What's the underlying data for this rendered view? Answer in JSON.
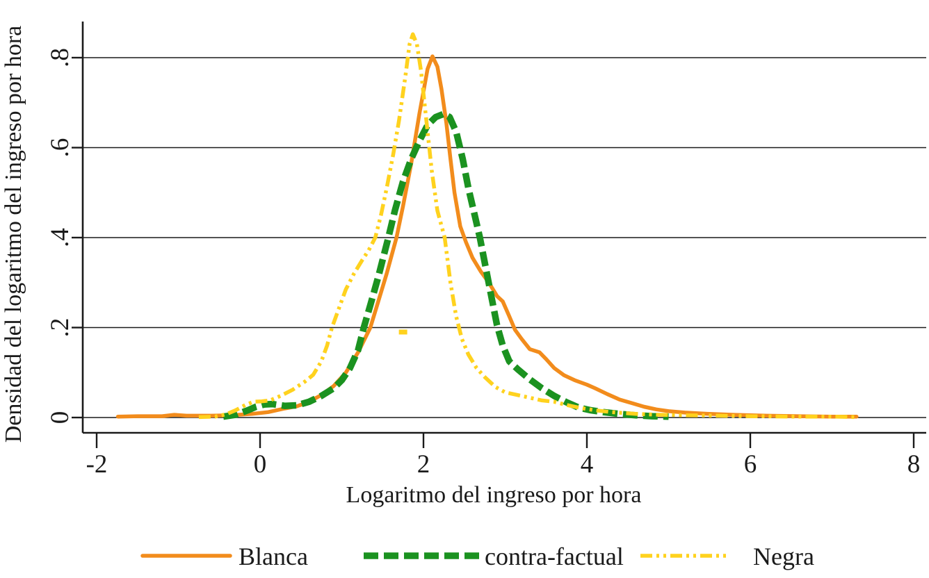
{
  "chart_data": {
    "type": "line",
    "subtype": "kernel-density",
    "title": "",
    "xlabel": "Logaritmo del ingreso por hora",
    "ylabel": "Densidad del logaritmo del ingreso por hora",
    "xlim": [
      -2.17,
      8.15
    ],
    "ylim": [
      0,
      0.88
    ],
    "grid": "horizontal",
    "legend_position": "bottom",
    "x_ticks": {
      "values": [
        -2,
        0,
        2,
        4,
        6,
        8
      ],
      "labels": [
        "-2",
        "0",
        "2",
        "4",
        "6",
        "8"
      ]
    },
    "y_ticks": {
      "values": [
        0,
        0.2,
        0.4,
        0.6,
        0.8
      ],
      "labels": [
        "0",
        ".2",
        ".4",
        ".6",
        ".8"
      ]
    },
    "series": [
      {
        "name": "Blanca",
        "color": "#F28C1C",
        "style": "solid",
        "peak": {
          "x": 2.11,
          "y": 0.8
        },
        "points": [
          [
            -1.74,
            0.002
          ],
          [
            -1.5,
            0.003
          ],
          [
            -1.2,
            0.003
          ],
          [
            -1.05,
            0.006
          ],
          [
            -0.9,
            0.004
          ],
          [
            -0.6,
            0.004
          ],
          [
            -0.35,
            0.005
          ],
          [
            -0.1,
            0.008
          ],
          [
            0.1,
            0.012
          ],
          [
            0.3,
            0.02
          ],
          [
            0.45,
            0.025
          ],
          [
            0.6,
            0.035
          ],
          [
            0.75,
            0.05
          ],
          [
            0.9,
            0.07
          ],
          [
            1.05,
            0.1
          ],
          [
            1.2,
            0.145
          ],
          [
            1.35,
            0.2
          ],
          [
            1.45,
            0.26
          ],
          [
            1.55,
            0.32
          ],
          [
            1.67,
            0.4
          ],
          [
            1.75,
            0.47
          ],
          [
            1.85,
            0.565
          ],
          [
            1.95,
            0.675
          ],
          [
            2.0,
            0.725
          ],
          [
            2.05,
            0.775
          ],
          [
            2.11,
            0.803
          ],
          [
            2.17,
            0.78
          ],
          [
            2.22,
            0.73
          ],
          [
            2.28,
            0.655
          ],
          [
            2.33,
            0.575
          ],
          [
            2.38,
            0.5
          ],
          [
            2.45,
            0.425
          ],
          [
            2.52,
            0.39
          ],
          [
            2.6,
            0.355
          ],
          [
            2.7,
            0.325
          ],
          [
            2.8,
            0.3
          ],
          [
            2.9,
            0.27
          ],
          [
            2.97,
            0.258
          ],
          [
            3.05,
            0.225
          ],
          [
            3.12,
            0.195
          ],
          [
            3.2,
            0.175
          ],
          [
            3.3,
            0.152
          ],
          [
            3.42,
            0.145
          ],
          [
            3.5,
            0.13
          ],
          [
            3.6,
            0.11
          ],
          [
            3.72,
            0.094
          ],
          [
            3.85,
            0.083
          ],
          [
            4.0,
            0.073
          ],
          [
            4.1,
            0.065
          ],
          [
            4.25,
            0.052
          ],
          [
            4.4,
            0.04
          ],
          [
            4.55,
            0.032
          ],
          [
            4.7,
            0.024
          ],
          [
            4.85,
            0.018
          ],
          [
            5.0,
            0.014
          ],
          [
            5.2,
            0.011
          ],
          [
            5.5,
            0.008
          ],
          [
            5.8,
            0.006
          ],
          [
            6.2,
            0.004
          ],
          [
            6.6,
            0.003
          ],
          [
            7.0,
            0.002
          ],
          [
            7.3,
            0.002
          ]
        ]
      },
      {
        "name": "contra-factual",
        "color": "#1B9220",
        "style": "thick-dash",
        "peak": {
          "x": 2.25,
          "y": 0.675
        },
        "points": [
          [
            -0.45,
            0.002
          ],
          [
            -0.3,
            0.006
          ],
          [
            -0.15,
            0.016
          ],
          [
            -0.05,
            0.024
          ],
          [
            0.05,
            0.029
          ],
          [
            0.15,
            0.03
          ],
          [
            0.3,
            0.026
          ],
          [
            0.45,
            0.027
          ],
          [
            0.6,
            0.035
          ],
          [
            0.75,
            0.048
          ],
          [
            0.9,
            0.065
          ],
          [
            1.0,
            0.083
          ],
          [
            1.1,
            0.11
          ],
          [
            1.2,
            0.15
          ],
          [
            1.27,
            0.2
          ],
          [
            1.35,
            0.25
          ],
          [
            1.45,
            0.315
          ],
          [
            1.57,
            0.4
          ],
          [
            1.65,
            0.46
          ],
          [
            1.75,
            0.525
          ],
          [
            1.85,
            0.575
          ],
          [
            1.95,
            0.615
          ],
          [
            2.05,
            0.65
          ],
          [
            2.15,
            0.668
          ],
          [
            2.25,
            0.675
          ],
          [
            2.32,
            0.668
          ],
          [
            2.4,
            0.635
          ],
          [
            2.48,
            0.575
          ],
          [
            2.55,
            0.51
          ],
          [
            2.62,
            0.455
          ],
          [
            2.69,
            0.4
          ],
          [
            2.76,
            0.335
          ],
          [
            2.83,
            0.27
          ],
          [
            2.9,
            0.205
          ],
          [
            2.97,
            0.16
          ],
          [
            3.05,
            0.125
          ],
          [
            3.15,
            0.108
          ],
          [
            3.3,
            0.085
          ],
          [
            3.45,
            0.065
          ],
          [
            3.6,
            0.048
          ],
          [
            3.75,
            0.034
          ],
          [
            3.9,
            0.022
          ],
          [
            4.05,
            0.016
          ],
          [
            4.2,
            0.012
          ],
          [
            4.4,
            0.008
          ],
          [
            4.6,
            0.005
          ],
          [
            4.8,
            0.003
          ],
          [
            5.0,
            0.002
          ]
        ]
      },
      {
        "name": "Negra",
        "color": "#FFD21E",
        "style": "dash-dot-dot",
        "peak": {
          "x": 1.87,
          "y": 0.85
        },
        "points": [
          [
            -0.75,
            0.001
          ],
          [
            -0.55,
            0.002
          ],
          [
            -0.42,
            0.007
          ],
          [
            -0.3,
            0.016
          ],
          [
            -0.18,
            0.028
          ],
          [
            -0.08,
            0.035
          ],
          [
            0.02,
            0.036
          ],
          [
            0.12,
            0.038
          ],
          [
            0.25,
            0.048
          ],
          [
            0.4,
            0.062
          ],
          [
            0.55,
            0.08
          ],
          [
            0.65,
            0.095
          ],
          [
            0.75,
            0.125
          ],
          [
            0.82,
            0.16
          ],
          [
            0.88,
            0.2
          ],
          [
            0.95,
            0.235
          ],
          [
            1.05,
            0.285
          ],
          [
            1.15,
            0.32
          ],
          [
            1.25,
            0.35
          ],
          [
            1.33,
            0.372
          ],
          [
            1.41,
            0.4
          ],
          [
            1.48,
            0.45
          ],
          [
            1.55,
            0.51
          ],
          [
            1.63,
            0.585
          ],
          [
            1.7,
            0.66
          ],
          [
            1.78,
            0.76
          ],
          [
            1.83,
            0.83
          ],
          [
            1.87,
            0.852
          ],
          [
            1.92,
            0.83
          ],
          [
            1.97,
            0.77
          ],
          [
            2.03,
            0.67
          ],
          [
            2.1,
            0.55
          ],
          [
            2.17,
            0.46
          ],
          [
            2.26,
            0.4
          ],
          [
            2.33,
            0.3
          ],
          [
            2.4,
            0.225
          ],
          [
            2.47,
            0.175
          ],
          [
            2.55,
            0.14
          ],
          [
            2.65,
            0.11
          ],
          [
            2.75,
            0.09
          ],
          [
            2.88,
            0.068
          ],
          [
            3.0,
            0.056
          ],
          [
            3.15,
            0.05
          ],
          [
            3.3,
            0.044
          ],
          [
            3.45,
            0.038
          ],
          [
            3.6,
            0.035
          ],
          [
            3.75,
            0.028
          ],
          [
            3.9,
            0.022
          ],
          [
            4.1,
            0.016
          ],
          [
            4.3,
            0.012
          ],
          [
            4.6,
            0.008
          ],
          [
            4.9,
            0.006
          ],
          [
            5.2,
            0.005
          ],
          [
            5.6,
            0.004
          ],
          [
            6.0,
            0.003
          ],
          [
            6.5,
            0.002
          ],
          [
            7.0,
            0.002
          ],
          [
            7.3,
            0.001
          ]
        ]
      }
    ],
    "annotations": [
      {
        "type": "stray-dash",
        "series": "Negra",
        "x": 1.75,
        "y": 0.19
      }
    ]
  },
  "legend": {
    "entries": [
      "Blanca",
      "contra-factual",
      "Negra"
    ]
  }
}
